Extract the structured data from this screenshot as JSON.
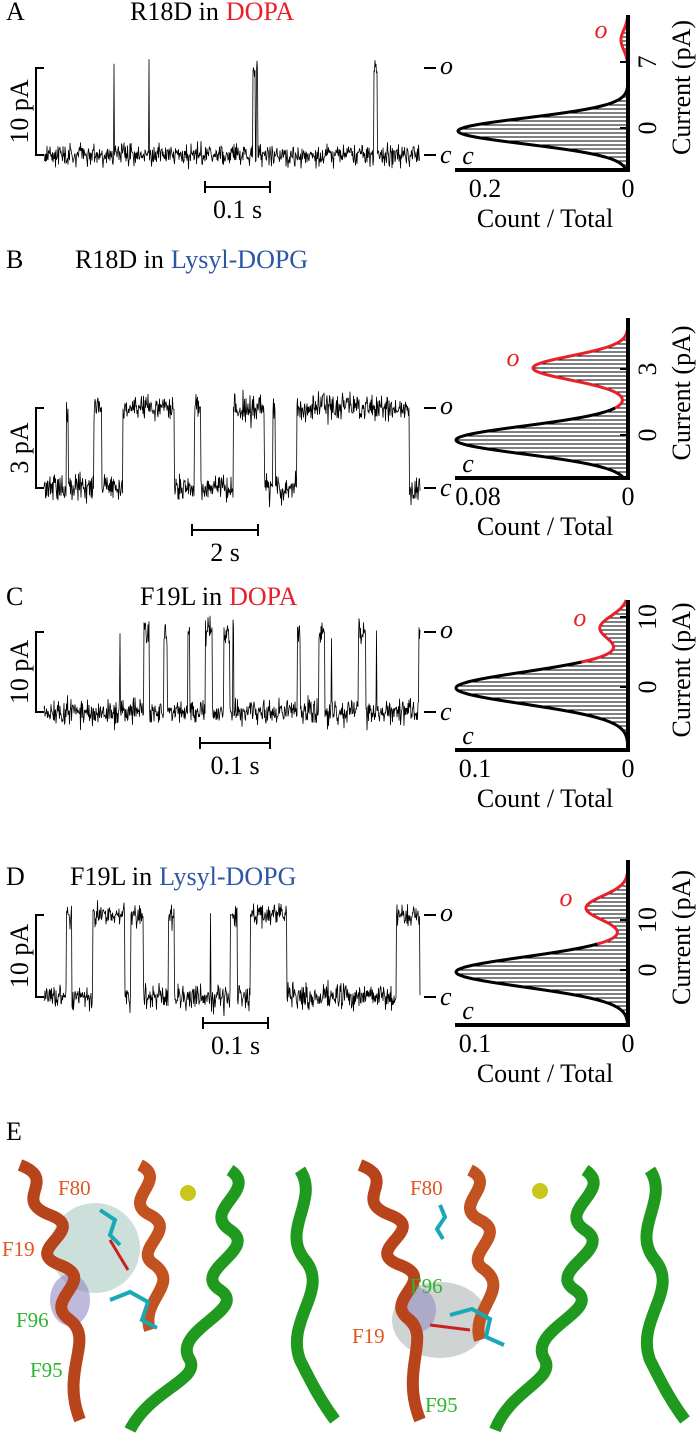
{
  "panels": [
    {
      "label": "A",
      "title": "R18D in",
      "lipid": "DOPA",
      "current_scale": "10 pA",
      "time_scale": "0.1 s",
      "open_state": "o",
      "closed_state": "c",
      "histogram": {
        "x_ticks": [
          "0.2",
          "0"
        ],
        "y_ticks": [
          "7",
          "0"
        ],
        "x_label": "Count / Total",
        "y_label": "Current (pA)",
        "open_label": "o",
        "closed_label": "c"
      }
    },
    {
      "label": "B",
      "title": "R18D in",
      "lipid": "Lysyl-DOPG",
      "current_scale": "3 pA",
      "time_scale": "2 s",
      "open_state": "o",
      "closed_state": "c",
      "histogram": {
        "x_ticks": [
          "0.08",
          "0"
        ],
        "y_ticks": [
          "3",
          "0"
        ],
        "x_label": "Count / Total",
        "y_label": "Current (pA)",
        "open_label": "o",
        "closed_label": "c"
      }
    },
    {
      "label": "C",
      "title": "F19L in",
      "lipid": "DOPA",
      "current_scale": "10 pA",
      "time_scale": "0.1 s",
      "open_state": "o",
      "closed_state": "c",
      "histogram": {
        "x_ticks": [
          "0.1",
          "0"
        ],
        "y_ticks": [
          "10",
          "0"
        ],
        "x_label": "Count / Total",
        "y_label": "Current (pA)",
        "open_label": "o",
        "closed_label": "c"
      }
    },
    {
      "label": "D",
      "title": "F19L in",
      "lipid": "Lysyl-DOPG",
      "current_scale": "10 pA",
      "time_scale": "0.1 s",
      "open_state": "o",
      "closed_state": "c",
      "histogram": {
        "x_ticks": [
          "0.1",
          "0"
        ],
        "y_ticks": [
          "10",
          "0"
        ],
        "x_label": "Count / Total",
        "y_label": "Current (pA)",
        "open_label": "o",
        "closed_label": "c"
      }
    }
  ],
  "structure": {
    "label": "E",
    "left_residues": [
      "F80",
      "F19",
      "F96",
      "F95"
    ],
    "right_residues": [
      "F80",
      "F96",
      "F19",
      "F95"
    ]
  }
}
